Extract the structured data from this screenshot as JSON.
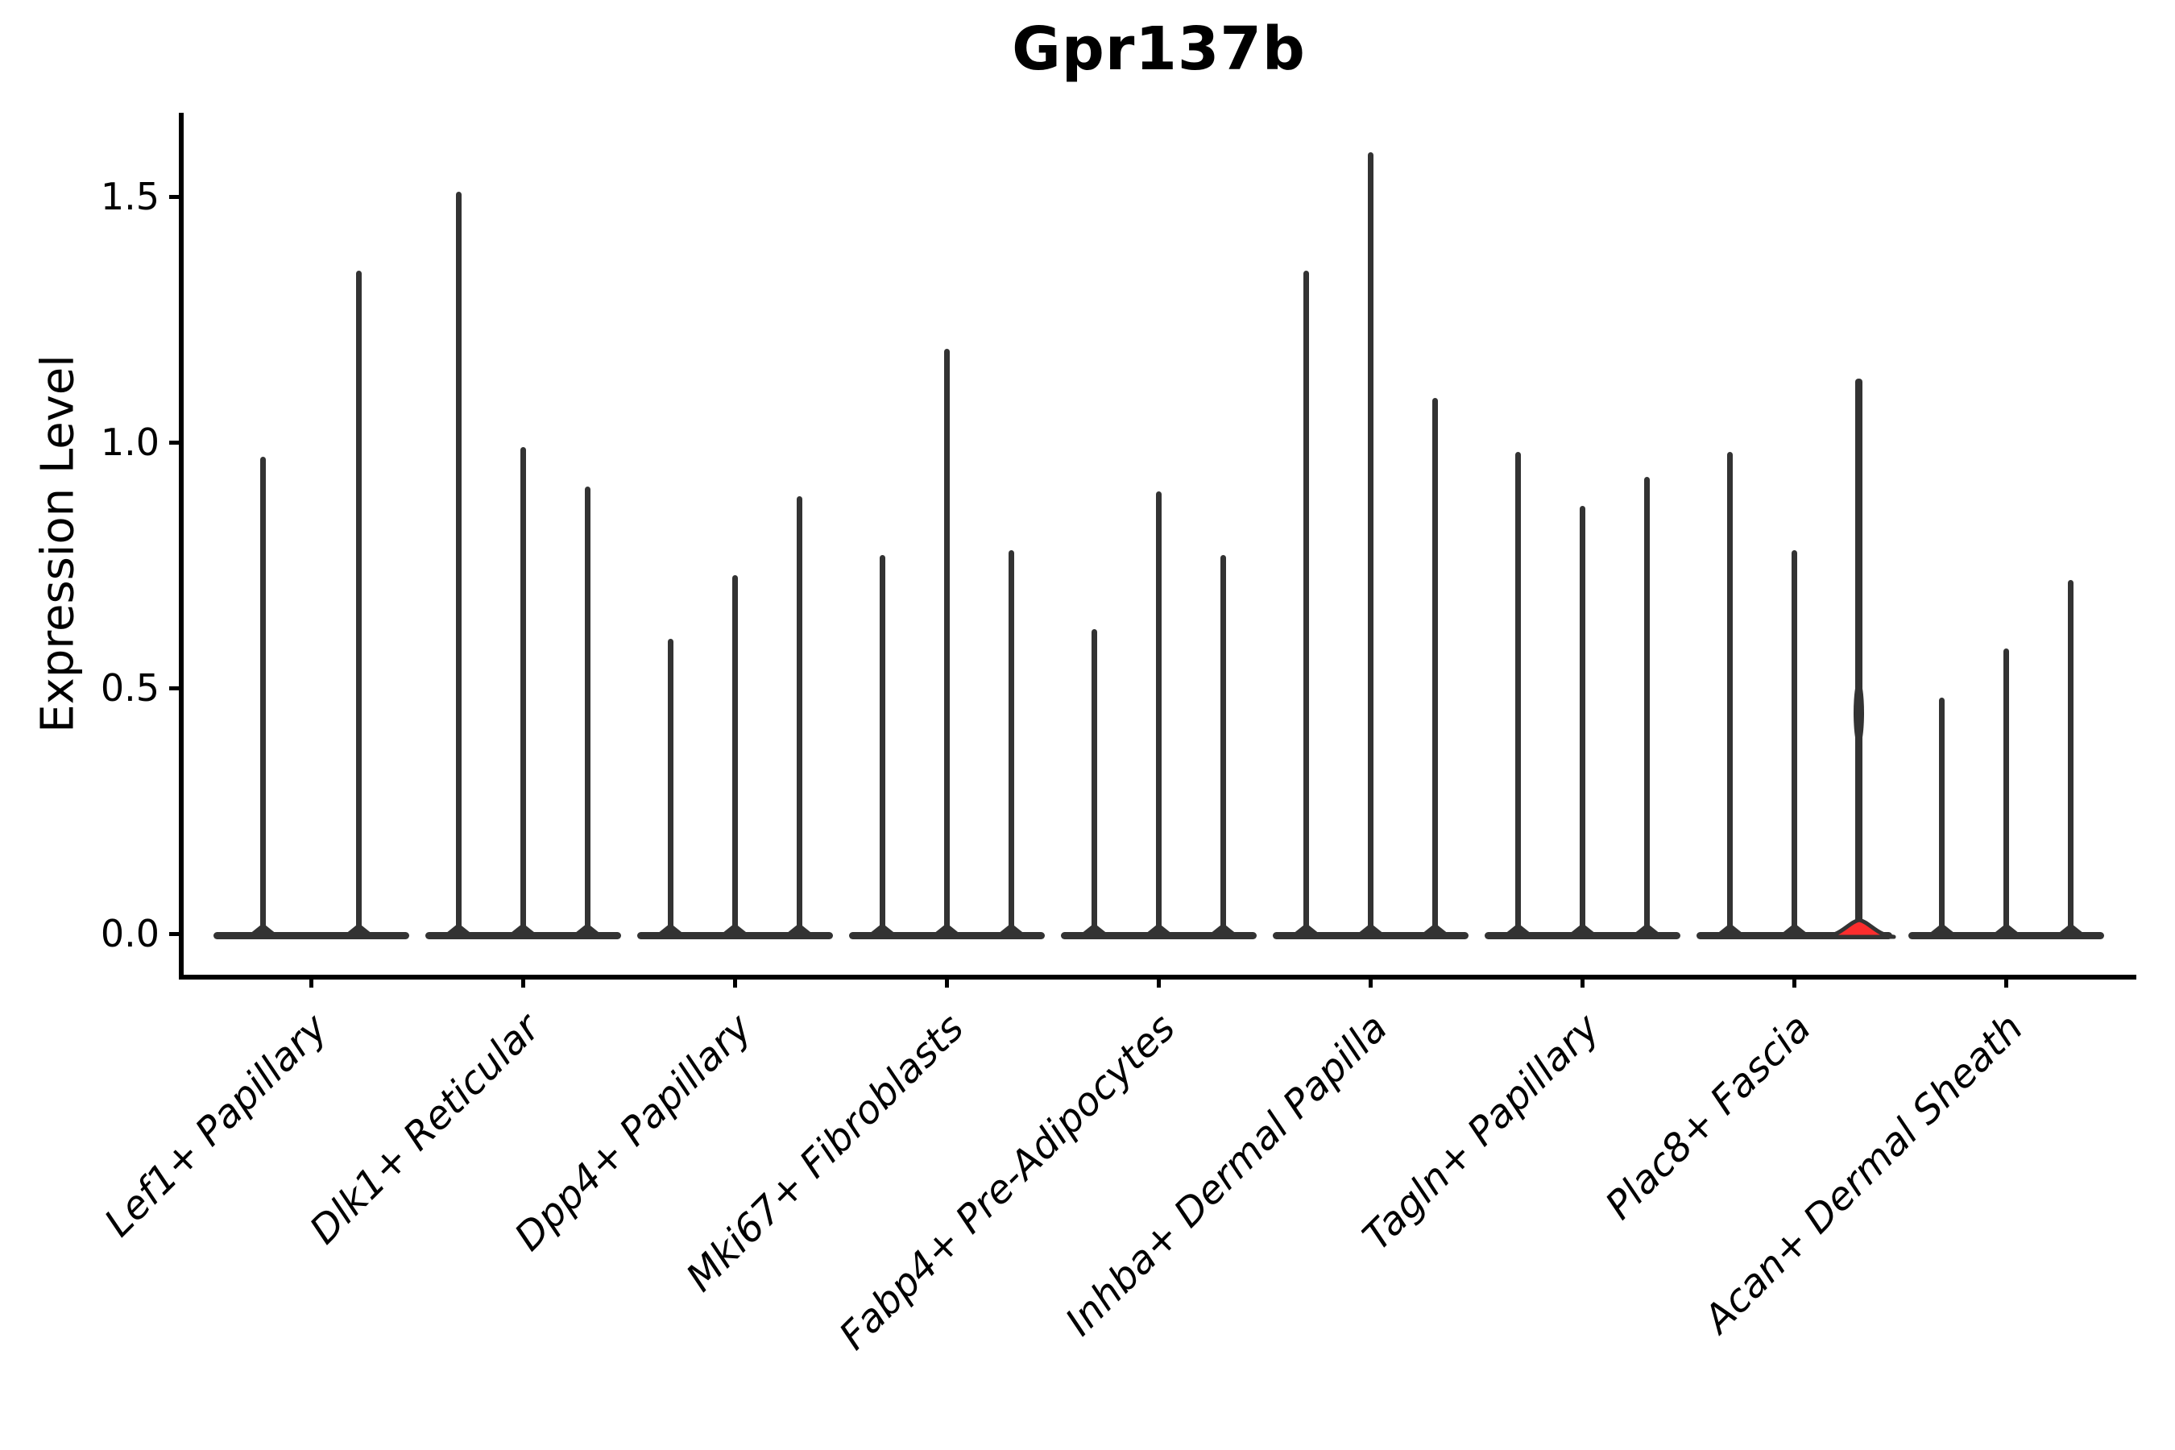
{
  "chart_data": {
    "type": "violin",
    "title": "Gpr137b",
    "ylabel": "Expression Level",
    "xlabel": "",
    "ylim": [
      0,
      1.67
    ],
    "yticks": [
      0.0,
      0.5,
      1.0,
      1.5
    ],
    "ytick_labels": [
      "0.0",
      "0.5",
      "1.0",
      "1.5"
    ],
    "grid": false,
    "legend": null,
    "categories": [
      "Lef1+ Papillary",
      "Dlk1+ Reticular",
      "Dpp4+ Papillary",
      "Mki67+ Fibroblasts",
      "Fabp4+ Pre-Adipocytes",
      "Inhba+ Dermal Papilla",
      "Tagln+ Papillary",
      "Plac8+ Fascia",
      "Acan+ Dermal Sheath"
    ],
    "groups": [
      {
        "category": "Lef1+ Papillary",
        "violin_max": [
          0.97,
          1.35
        ]
      },
      {
        "category": "Dlk1+ Reticular",
        "violin_max": [
          1.51,
          0.99,
          0.91
        ]
      },
      {
        "category": "Dpp4+ Papillary",
        "violin_max": [
          0.6,
          0.73,
          0.89
        ]
      },
      {
        "category": "Mki67+ Fibroblasts",
        "violin_max": [
          0.77,
          1.19,
          0.78
        ]
      },
      {
        "category": "Fabp4+ Pre-Adipocytes",
        "violin_max": [
          0.62,
          0.9,
          0.77
        ]
      },
      {
        "category": "Inhba+ Dermal Papilla",
        "violin_max": [
          1.35,
          1.59,
          1.09
        ]
      },
      {
        "category": "Tagln+ Papillary",
        "violin_max": [
          0.98,
          0.87,
          0.93
        ]
      },
      {
        "category": "Plac8+ Fascia",
        "violin_max": [
          0.98,
          0.78,
          1.13
        ],
        "highlight_index": 2,
        "highlight_bulge_at": 0.45
      },
      {
        "category": "Acan+ Dermal Sheath",
        "violin_max": [
          0.48,
          0.58,
          0.72
        ]
      }
    ],
    "colors": {
      "violin_outline": "#333333",
      "highlight_fill": "#fc2d2d",
      "axis": "#000000",
      "background": "#ffffff"
    }
  }
}
